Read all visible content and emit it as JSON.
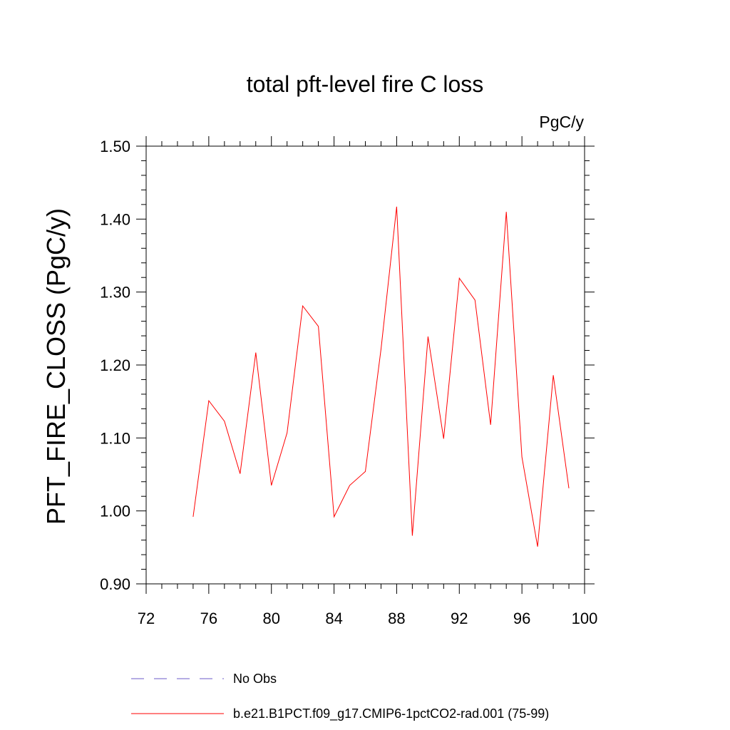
{
  "chart_data": {
    "type": "line",
    "title": "total pft-level fire C loss",
    "units_label": "PgC/y",
    "ylabel": "PFT_FIRE_CLOSS  (PgC/y)",
    "xlabel": "",
    "xlim": [
      72,
      100
    ],
    "ylim": [
      0.9,
      1.5
    ],
    "x_ticks": [
      72,
      76,
      80,
      84,
      88,
      92,
      96,
      100
    ],
    "y_ticks": [
      "0.90",
      "1.00",
      "1.10",
      "1.20",
      "1.30",
      "1.40",
      "1.50"
    ],
    "grid": false,
    "legend_position": "bottom",
    "series": [
      {
        "name": "b.e21.B1PCT.f09_g17.CMIP6-1pctCO2-rad.001 (75-99)",
        "color": "#ff0000",
        "style": "solid",
        "x": [
          75,
          76,
          77,
          78,
          79,
          80,
          81,
          82,
          83,
          84,
          85,
          86,
          87,
          88,
          89,
          90,
          91,
          92,
          93,
          94,
          95,
          96,
          97,
          98,
          99
        ],
        "y": [
          0.992,
          1.151,
          1.123,
          1.051,
          1.217,
          1.035,
          1.107,
          1.281,
          1.253,
          0.992,
          1.035,
          1.054,
          1.222,
          1.417,
          0.966,
          1.239,
          1.099,
          1.319,
          1.289,
          1.118,
          1.41,
          1.074,
          0.951,
          1.186,
          1.031
        ]
      }
    ],
    "legend": [
      {
        "label": "No Obs",
        "color": "#6b5bc8",
        "style": "dashed"
      },
      {
        "label": "b.e21.B1PCT.f09_g17.CMIP6-1pctCO2-rad.001 (75-99)",
        "color": "#ff0000",
        "style": "solid"
      }
    ]
  }
}
